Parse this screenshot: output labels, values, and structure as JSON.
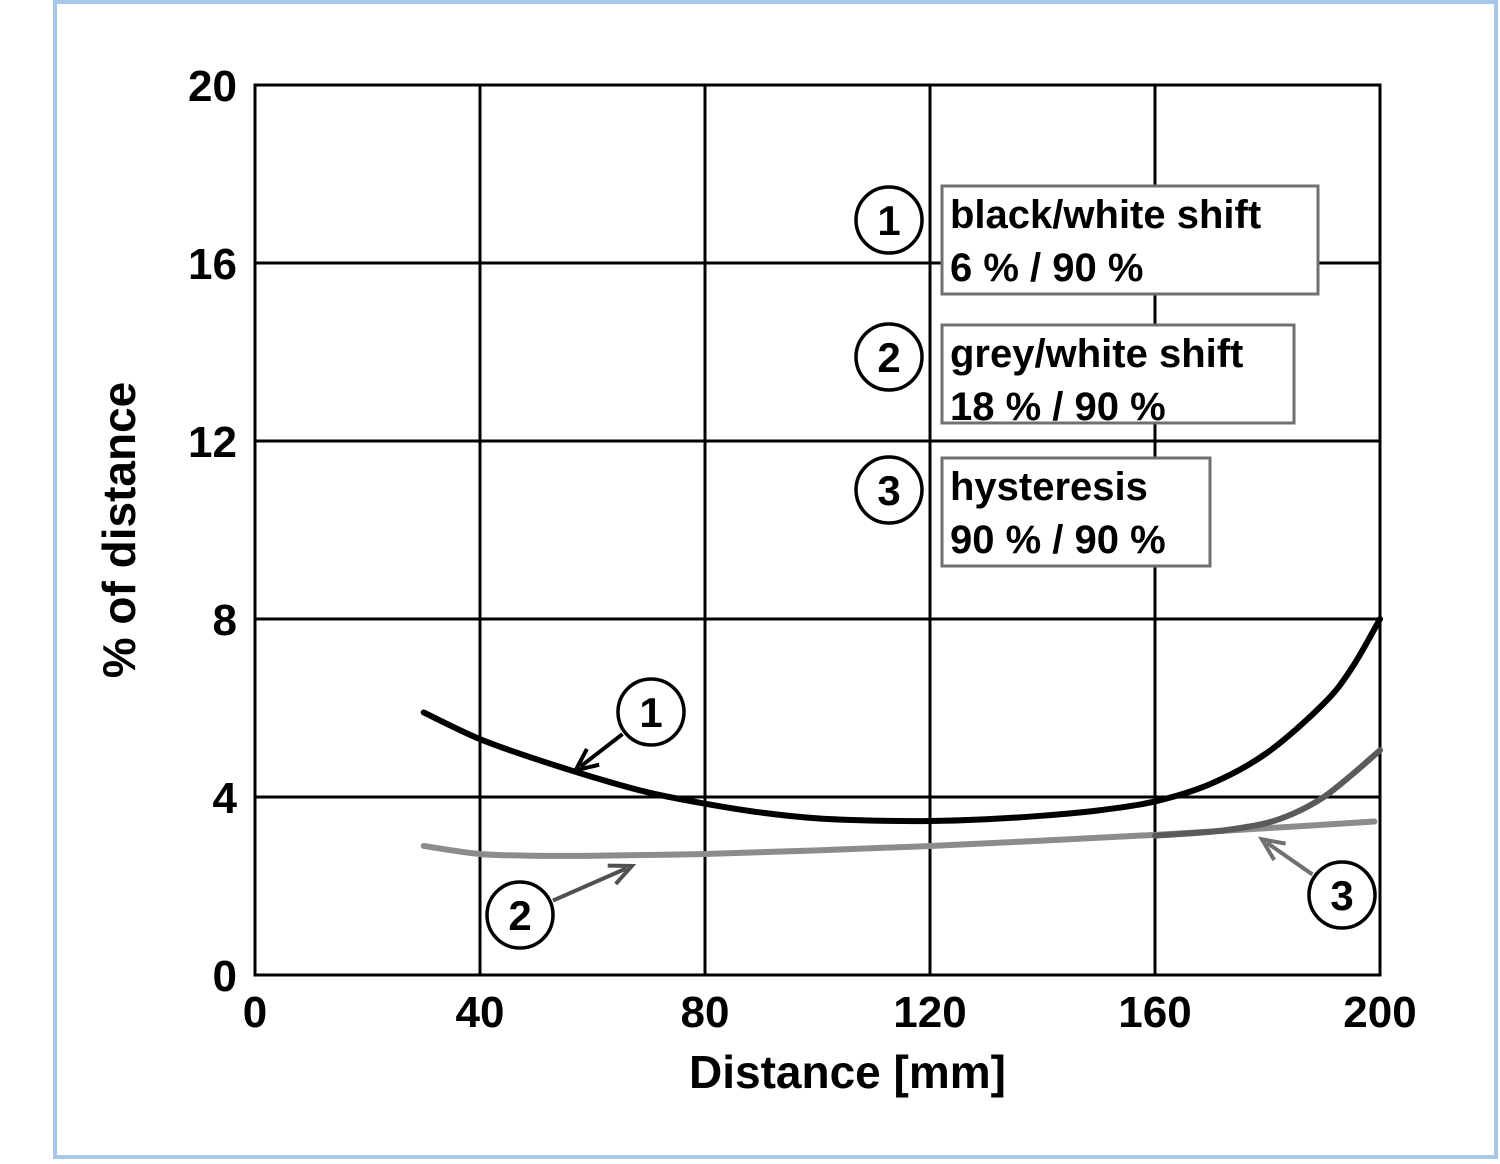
{
  "chart_data": {
    "type": "line",
    "xlabel": "Distance [mm]",
    "ylabel": "% of distance",
    "xlim": [
      0,
      200
    ],
    "ylim": [
      0,
      20
    ],
    "x_ticks": [
      "0",
      "40",
      "80",
      "120",
      "160",
      "200"
    ],
    "y_ticks": [
      "0",
      "4",
      "8",
      "12",
      "16",
      "20"
    ],
    "grid": true,
    "legend_position": "top-right",
    "legend": [
      {
        "number": "1",
        "line1": "black/white shift",
        "line2": "6 % / 90 %"
      },
      {
        "number": "2",
        "line1": "grey/white shift",
        "line2": "18 % / 90 %"
      },
      {
        "number": "3",
        "line1": "hysteresis",
        "line2": "90 % / 90 %"
      }
    ],
    "series": [
      {
        "marker": "1",
        "color": "#000000",
        "x": [
          30,
          40,
          50,
          60,
          70,
          80,
          90,
          100,
          110,
          120,
          130,
          140,
          150,
          160,
          170,
          180,
          190,
          195,
          200
        ],
        "y": [
          5.9,
          5.3,
          4.85,
          4.45,
          4.1,
          3.85,
          3.65,
          3.52,
          3.47,
          3.46,
          3.5,
          3.58,
          3.7,
          3.9,
          4.3,
          5.0,
          6.1,
          6.9,
          8.0
        ]
      },
      {
        "marker": "2",
        "color": "#8a8c8e",
        "x": [
          30,
          40,
          50,
          60,
          80,
          100,
          120,
          140,
          160,
          180,
          199
        ],
        "y": [
          2.9,
          2.72,
          2.68,
          2.68,
          2.72,
          2.8,
          2.9,
          3.02,
          3.15,
          3.3,
          3.45
        ]
      },
      {
        "marker": "3",
        "color": "#5a5a5a",
        "x": [
          160,
          170,
          175,
          180,
          185,
          190,
          195,
          200
        ],
        "y": [
          3.13,
          3.22,
          3.3,
          3.42,
          3.65,
          4.0,
          4.5,
          5.05
        ]
      }
    ],
    "annotations": [
      {
        "label": "1",
        "target_x": 57,
        "target_y": 4.6
      },
      {
        "label": "2",
        "target_x": 67,
        "target_y": 2.45
      },
      {
        "label": "3",
        "target_x": 179,
        "target_y": 3.05
      }
    ],
    "colors": {
      "frame": "#a8c6e8",
      "grid": "#000000",
      "legend_box": "#707070",
      "arrow_1": "#000000",
      "arrow_2": "#505050",
      "arrow_3": "#707070"
    }
  }
}
